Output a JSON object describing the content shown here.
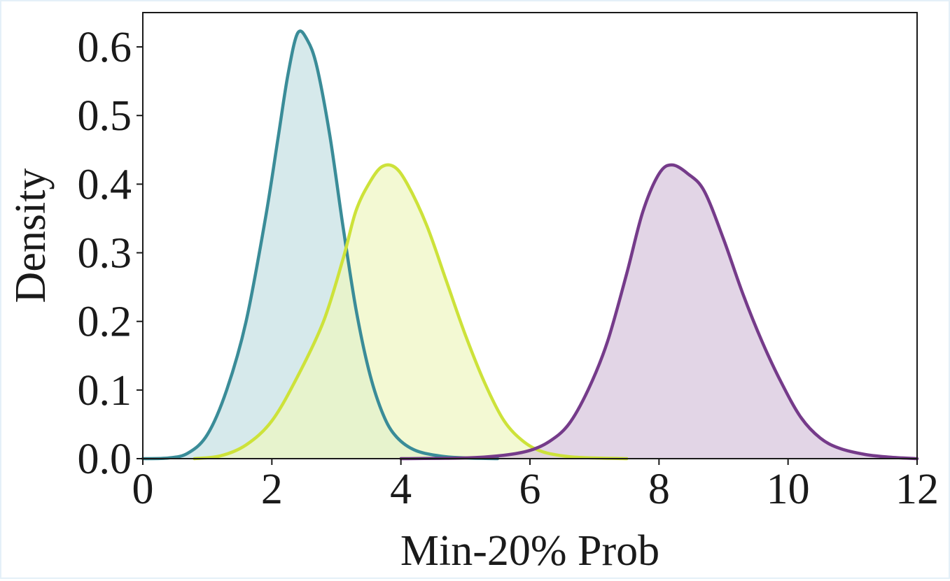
{
  "chart_data": {
    "type": "area",
    "xlabel": "Min-20% Prob",
    "ylabel": "Density",
    "xlim": [
      0,
      12
    ],
    "ylim": [
      0,
      0.65
    ],
    "x_ticks": [
      "0",
      "2",
      "4",
      "6",
      "8",
      "10",
      "12"
    ],
    "y_ticks": [
      "0.0",
      "0.1",
      "0.2",
      "0.3",
      "0.4",
      "0.5",
      "0.6"
    ],
    "grid": false,
    "legend": "none",
    "series": [
      {
        "color": "#3a8c98",
        "fill": "#c5dfe3",
        "points": [
          [
            0,
            0
          ],
          [
            0.4,
            0.001
          ],
          [
            0.7,
            0.008
          ],
          [
            1.0,
            0.035
          ],
          [
            1.3,
            0.1
          ],
          [
            1.6,
            0.2
          ],
          [
            1.9,
            0.35
          ],
          [
            2.1,
            0.47
          ],
          [
            2.25,
            0.56
          ],
          [
            2.4,
            0.62
          ],
          [
            2.55,
            0.61
          ],
          [
            2.7,
            0.57
          ],
          [
            2.9,
            0.47
          ],
          [
            3.1,
            0.34
          ],
          [
            3.3,
            0.22
          ],
          [
            3.5,
            0.13
          ],
          [
            3.7,
            0.07
          ],
          [
            3.9,
            0.035
          ],
          [
            4.2,
            0.013
          ],
          [
            4.6,
            0.004
          ],
          [
            5.0,
            0.001
          ],
          [
            5.5,
            0
          ]
        ]
      },
      {
        "color": "#cde23a",
        "fill": "#eef7c0",
        "points": [
          [
            0.8,
            0
          ],
          [
            1.2,
            0.004
          ],
          [
            1.6,
            0.02
          ],
          [
            2.0,
            0.055
          ],
          [
            2.4,
            0.12
          ],
          [
            2.8,
            0.2
          ],
          [
            3.1,
            0.29
          ],
          [
            3.3,
            0.36
          ],
          [
            3.5,
            0.4
          ],
          [
            3.7,
            0.425
          ],
          [
            3.9,
            0.425
          ],
          [
            4.1,
            0.4
          ],
          [
            4.4,
            0.34
          ],
          [
            4.7,
            0.26
          ],
          [
            5.0,
            0.18
          ],
          [
            5.3,
            0.11
          ],
          [
            5.6,
            0.055
          ],
          [
            5.9,
            0.025
          ],
          [
            6.2,
            0.01
          ],
          [
            6.6,
            0.003
          ],
          [
            7.0,
            0.001
          ],
          [
            7.5,
            0
          ]
        ]
      },
      {
        "color": "#753b8a",
        "fill": "#d6c3db",
        "points": [
          [
            4.0,
            0
          ],
          [
            5.0,
            0.001
          ],
          [
            5.6,
            0.005
          ],
          [
            6.0,
            0.012
          ],
          [
            6.3,
            0.025
          ],
          [
            6.6,
            0.05
          ],
          [
            6.9,
            0.1
          ],
          [
            7.2,
            0.17
          ],
          [
            7.5,
            0.27
          ],
          [
            7.75,
            0.36
          ],
          [
            8.0,
            0.415
          ],
          [
            8.2,
            0.428
          ],
          [
            8.45,
            0.415
          ],
          [
            8.7,
            0.39
          ],
          [
            9.0,
            0.32
          ],
          [
            9.3,
            0.24
          ],
          [
            9.6,
            0.17
          ],
          [
            9.9,
            0.11
          ],
          [
            10.2,
            0.06
          ],
          [
            10.5,
            0.03
          ],
          [
            10.8,
            0.015
          ],
          [
            11.2,
            0.006
          ],
          [
            11.6,
            0.002
          ],
          [
            12.0,
            0
          ]
        ]
      }
    ]
  }
}
